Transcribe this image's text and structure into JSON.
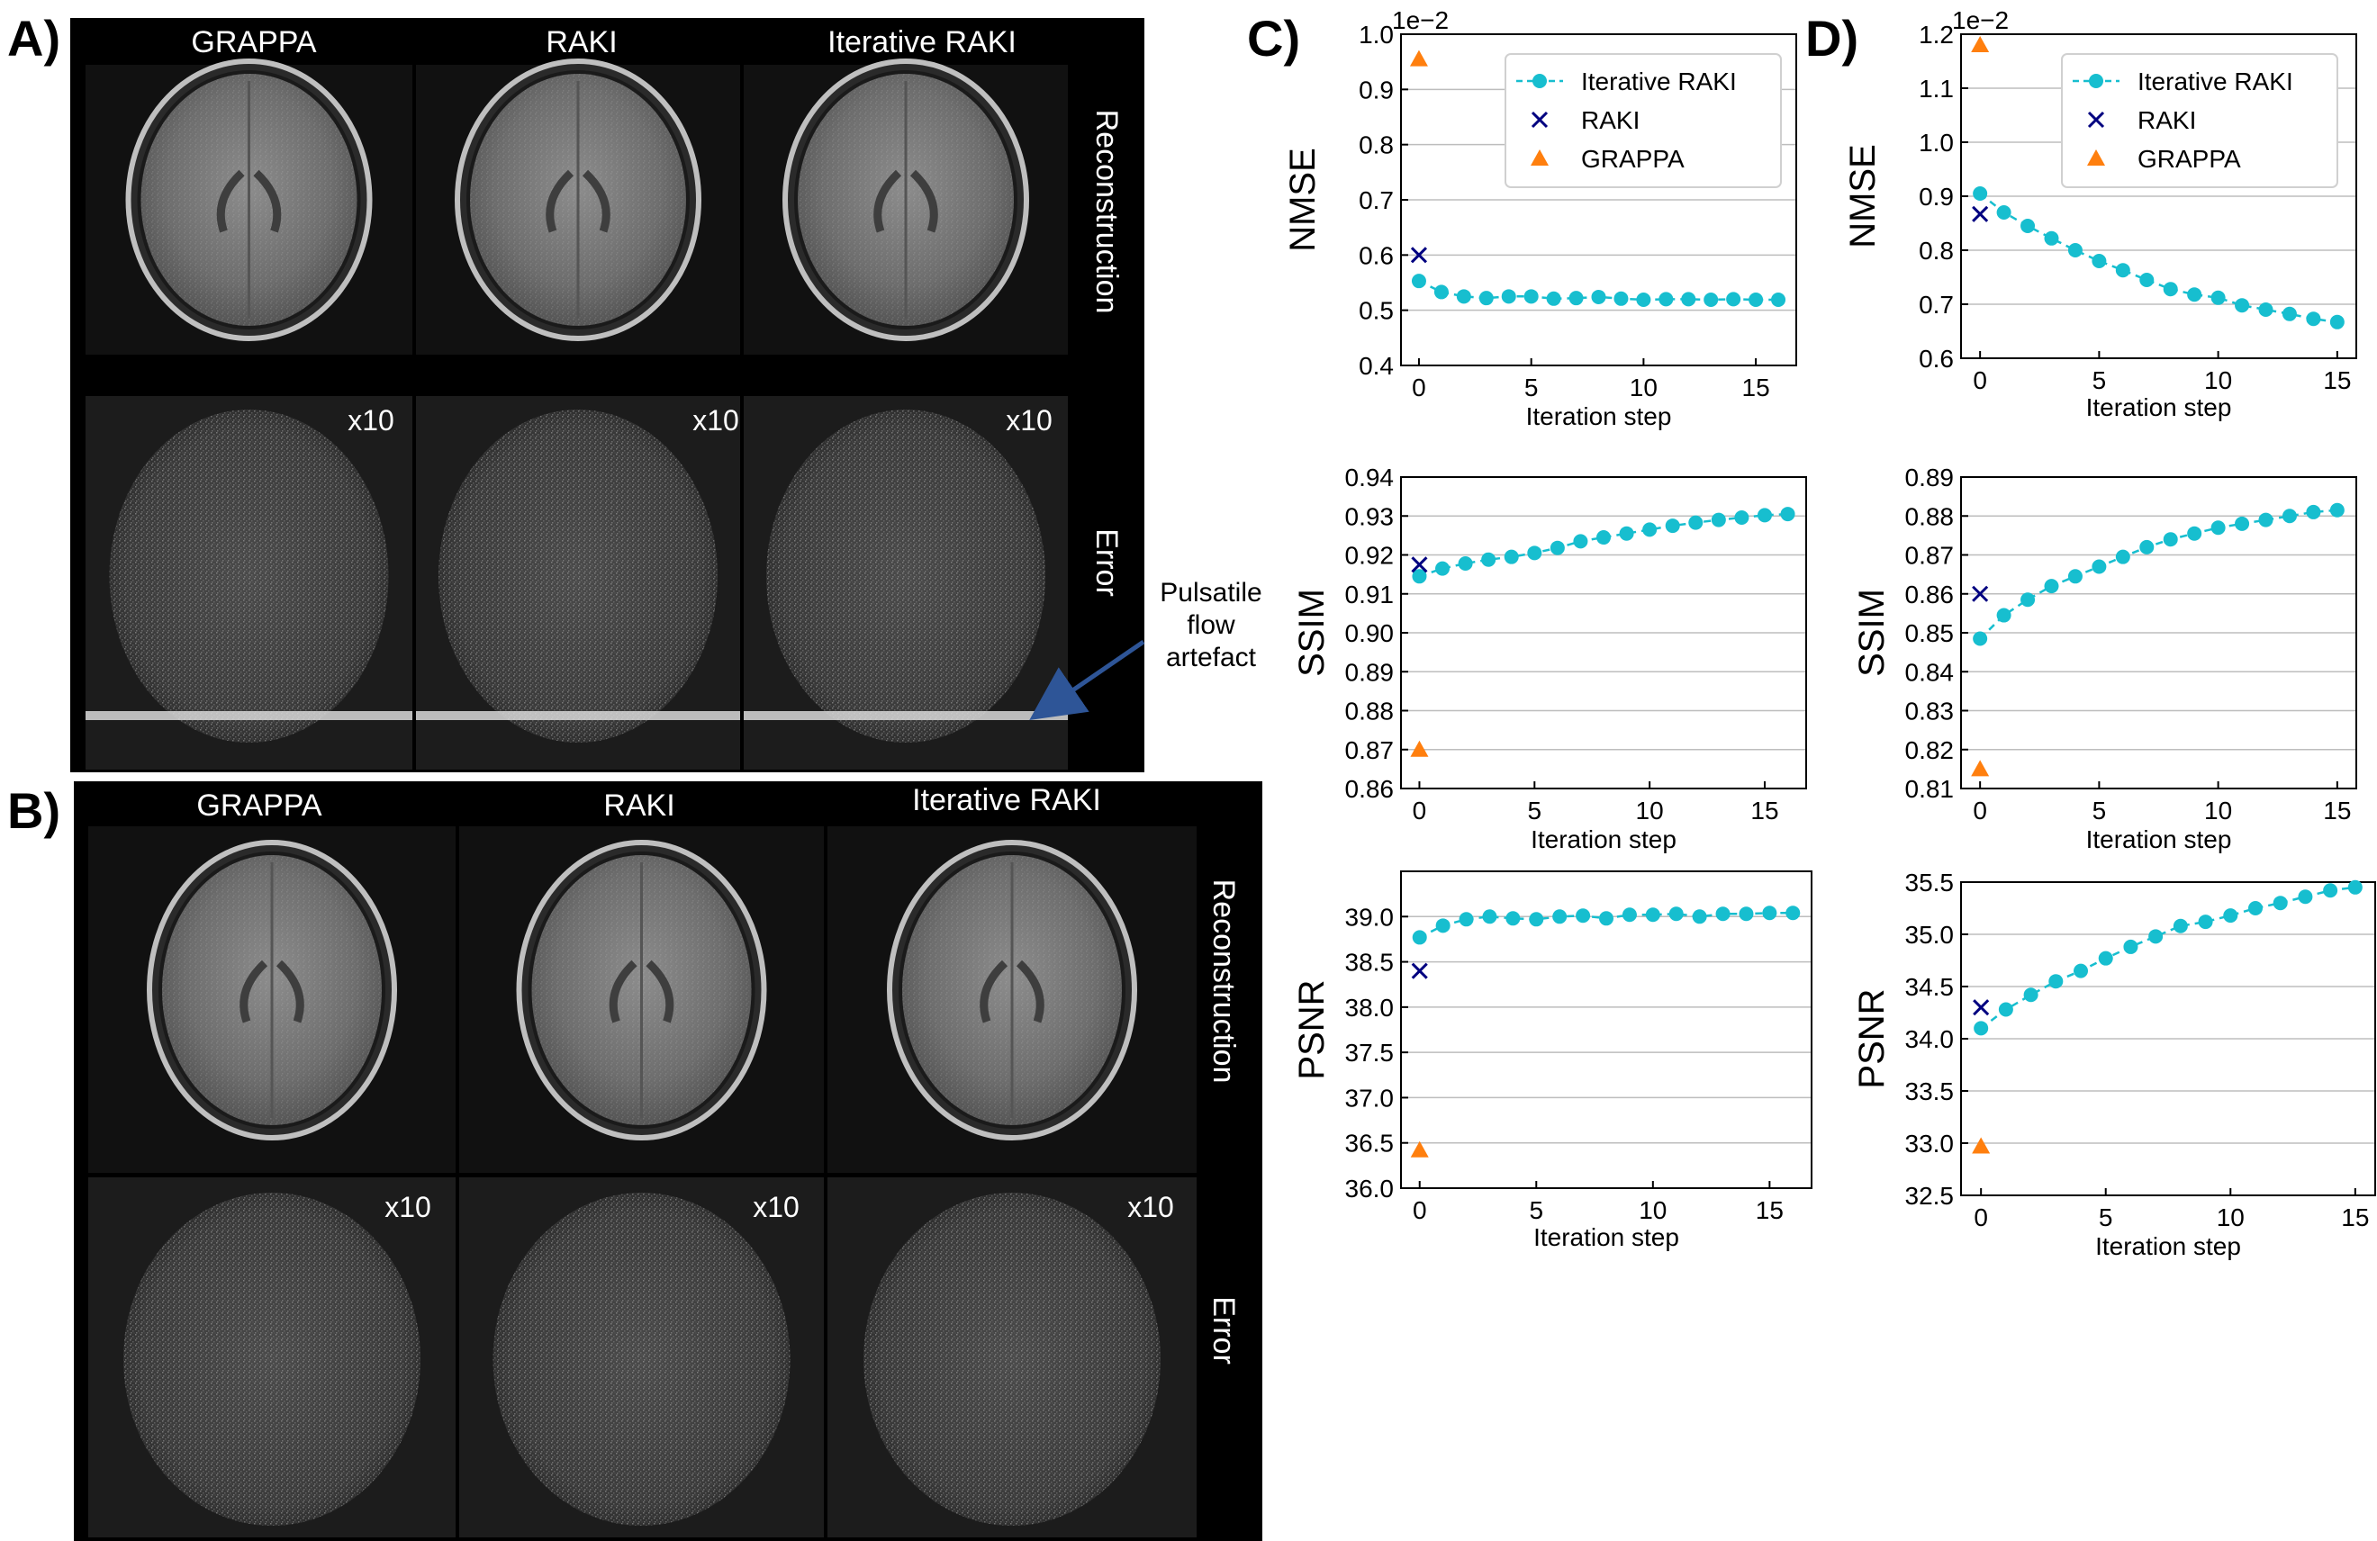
{
  "panel_labels": {
    "a": "A)",
    "b": "B)",
    "c": "C)",
    "d": "D)"
  },
  "panel_a": {
    "columns": [
      "GRAPPA",
      "RAKI",
      "Iterative RAKI"
    ],
    "row_labels": [
      "Reconstruction",
      "Error"
    ],
    "scale_label": "x10",
    "annotation": [
      "Pulsatile",
      "flow",
      "artefact"
    ]
  },
  "panel_b": {
    "columns": [
      "GRAPPA",
      "RAKI",
      "Iterative RAKI"
    ],
    "row_labels": [
      "Reconstruction",
      "Error"
    ],
    "scale_label": "x10"
  },
  "colors": {
    "iterative": "#17becf",
    "raki": "#000080",
    "grappa": "#ff7f0e"
  },
  "legend_entries": [
    "Iterative RAKI",
    "RAKI",
    "GRAPPA"
  ],
  "chart_data": [
    {
      "panel": "C",
      "type": "line",
      "ylabel": "NMSE",
      "xlabel": "Iteration step",
      "offset_label": "1e−2",
      "xlim": [
        -0.8,
        16.8
      ],
      "ylim": [
        0.4,
        1.0
      ],
      "xticks": [
        0,
        5,
        10,
        15
      ],
      "yticks": [
        0.4,
        0.5,
        0.6,
        0.7,
        0.8,
        0.9,
        1.0
      ],
      "ytick_labels": [
        "0.4",
        "0.5",
        "0.6",
        "0.7",
        "0.8",
        "0.9",
        "1.0"
      ],
      "grid": true,
      "legend": "top-right",
      "series": [
        {
          "name": "Iterative RAKI",
          "x": [
            0,
            1,
            2,
            3,
            4,
            5,
            6,
            7,
            8,
            9,
            10,
            11,
            12,
            13,
            14,
            15,
            16
          ],
          "values": [
            0.553,
            0.533,
            0.525,
            0.522,
            0.525,
            0.525,
            0.521,
            0.522,
            0.524,
            0.521,
            0.519,
            0.52,
            0.52,
            0.519,
            0.52,
            0.519,
            0.519
          ]
        },
        {
          "name": "RAKI",
          "x": [
            0
          ],
          "values": [
            0.6
          ]
        },
        {
          "name": "GRAPPA",
          "x": [
            0
          ],
          "values": [
            0.955
          ]
        }
      ]
    },
    {
      "panel": "C",
      "type": "line",
      "ylabel": "SSIM",
      "xlabel": "Iteration step",
      "xlim": [
        -0.8,
        16.8
      ],
      "ylim": [
        0.86,
        0.94
      ],
      "xticks": [
        0,
        5,
        10,
        15
      ],
      "yticks": [
        0.86,
        0.87,
        0.88,
        0.89,
        0.9,
        0.91,
        0.92,
        0.93,
        0.94
      ],
      "ytick_labels": [
        "0.86",
        "0.87",
        "0.88",
        "0.89",
        "0.90",
        "0.91",
        "0.92",
        "0.93",
        "0.94"
      ],
      "grid": true,
      "series": [
        {
          "name": "Iterative RAKI",
          "x": [
            0,
            1,
            2,
            3,
            4,
            5,
            6,
            7,
            8,
            9,
            10,
            11,
            12,
            13,
            14,
            15,
            16
          ],
          "values": [
            0.9145,
            0.9165,
            0.9178,
            0.9188,
            0.9195,
            0.9205,
            0.9218,
            0.9235,
            0.9245,
            0.9255,
            0.9265,
            0.9275,
            0.9283,
            0.929,
            0.9296,
            0.9302,
            0.9305
          ]
        },
        {
          "name": "RAKI",
          "x": [
            0
          ],
          "values": [
            0.9175
          ]
        },
        {
          "name": "GRAPPA",
          "x": [
            0
          ],
          "values": [
            0.87
          ]
        }
      ]
    },
    {
      "panel": "C",
      "type": "line",
      "ylabel": "PSNR",
      "xlabel": "Iteration step",
      "xlim": [
        -0.8,
        16.8
      ],
      "ylim": [
        36.0,
        39.5
      ],
      "xticks": [
        0,
        5,
        10,
        15
      ],
      "yticks": [
        36.0,
        36.5,
        37.0,
        37.5,
        38.0,
        38.5,
        39.0
      ],
      "ytick_labels": [
        "36.0",
        "36.5",
        "37.0",
        "37.5",
        "38.0",
        "38.5",
        "39.0"
      ],
      "grid": true,
      "series": [
        {
          "name": "Iterative RAKI",
          "x": [
            0,
            1,
            2,
            3,
            4,
            5,
            6,
            7,
            8,
            9,
            10,
            11,
            12,
            13,
            14,
            15,
            16
          ],
          "values": [
            38.77,
            38.9,
            38.97,
            39.0,
            38.98,
            38.97,
            39.0,
            39.01,
            38.98,
            39.02,
            39.02,
            39.03,
            39.0,
            39.03,
            39.03,
            39.04,
            39.04
          ]
        },
        {
          "name": "RAKI",
          "x": [
            0
          ],
          "values": [
            38.4
          ]
        },
        {
          "name": "GRAPPA",
          "x": [
            0
          ],
          "values": [
            36.42
          ]
        }
      ]
    },
    {
      "panel": "D",
      "type": "line",
      "ylabel": "NMSE",
      "xlabel": "Iteration step",
      "offset_label": "1e−2",
      "xlim": [
        -0.8,
        15.8
      ],
      "ylim": [
        0.6,
        1.2
      ],
      "xticks": [
        0,
        5,
        10,
        15
      ],
      "yticks": [
        0.6,
        0.7,
        0.8,
        0.9,
        1.0,
        1.1,
        1.2
      ],
      "ytick_labels": [
        "0.6",
        "0.7",
        "0.8",
        "0.9",
        "1.0",
        "1.1",
        "1.2"
      ],
      "grid": true,
      "legend": "top-right",
      "series": [
        {
          "name": "Iterative RAKI",
          "x": [
            0,
            1,
            2,
            3,
            4,
            5,
            6,
            7,
            8,
            9,
            10,
            11,
            12,
            13,
            14,
            15
          ],
          "values": [
            0.905,
            0.87,
            0.845,
            0.822,
            0.8,
            0.78,
            0.763,
            0.745,
            0.728,
            0.718,
            0.712,
            0.698,
            0.69,
            0.682,
            0.673,
            0.667
          ]
        },
        {
          "name": "RAKI",
          "x": [
            0
          ],
          "values": [
            0.867
          ]
        },
        {
          "name": "GRAPPA",
          "x": [
            0
          ],
          "values": [
            1.18
          ]
        }
      ]
    },
    {
      "panel": "D",
      "type": "line",
      "ylabel": "SSIM",
      "xlabel": "Iteration step",
      "xlim": [
        -0.8,
        15.8
      ],
      "ylim": [
        0.81,
        0.89
      ],
      "xticks": [
        0,
        5,
        10,
        15
      ],
      "yticks": [
        0.81,
        0.82,
        0.83,
        0.84,
        0.85,
        0.86,
        0.87,
        0.88,
        0.89
      ],
      "ytick_labels": [
        "0.81",
        "0.82",
        "0.83",
        "0.84",
        "0.85",
        "0.86",
        "0.87",
        "0.88",
        "0.89"
      ],
      "grid": true,
      "series": [
        {
          "name": "Iterative RAKI",
          "x": [
            0,
            1,
            2,
            3,
            4,
            5,
            6,
            7,
            8,
            9,
            10,
            11,
            12,
            13,
            14,
            15
          ],
          "values": [
            0.8485,
            0.8545,
            0.8585,
            0.862,
            0.8645,
            0.867,
            0.8695,
            0.872,
            0.874,
            0.8755,
            0.877,
            0.878,
            0.879,
            0.88,
            0.881,
            0.8815
          ]
        },
        {
          "name": "RAKI",
          "x": [
            0
          ],
          "values": [
            0.86
          ]
        },
        {
          "name": "GRAPPA",
          "x": [
            0
          ],
          "values": [
            0.815
          ]
        }
      ]
    },
    {
      "panel": "D",
      "type": "line",
      "ylabel": "PSNR",
      "xlabel": "Iteration step",
      "xlim": [
        -0.8,
        15.8
      ],
      "ylim": [
        32.5,
        35.5
      ],
      "xticks": [
        0,
        5,
        10,
        15
      ],
      "yticks": [
        32.5,
        33.0,
        33.5,
        34.0,
        34.5,
        35.0,
        35.5
      ],
      "ytick_labels": [
        "32.5",
        "33.0",
        "33.5",
        "34.0",
        "34.5",
        "35.0",
        "35.5"
      ],
      "grid": true,
      "series": [
        {
          "name": "Iterative RAKI",
          "x": [
            0,
            1,
            2,
            3,
            4,
            5,
            6,
            7,
            8,
            9,
            10,
            11,
            12,
            13,
            14,
            15
          ],
          "values": [
            34.1,
            34.28,
            34.42,
            34.55,
            34.65,
            34.77,
            34.88,
            34.98,
            35.08,
            35.12,
            35.18,
            35.25,
            35.3,
            35.36,
            35.42,
            35.45
          ]
        },
        {
          "name": "RAKI",
          "x": [
            0
          ],
          "values": [
            34.3
          ]
        },
        {
          "name": "GRAPPA",
          "x": [
            0
          ],
          "values": [
            32.97
          ]
        }
      ]
    }
  ]
}
